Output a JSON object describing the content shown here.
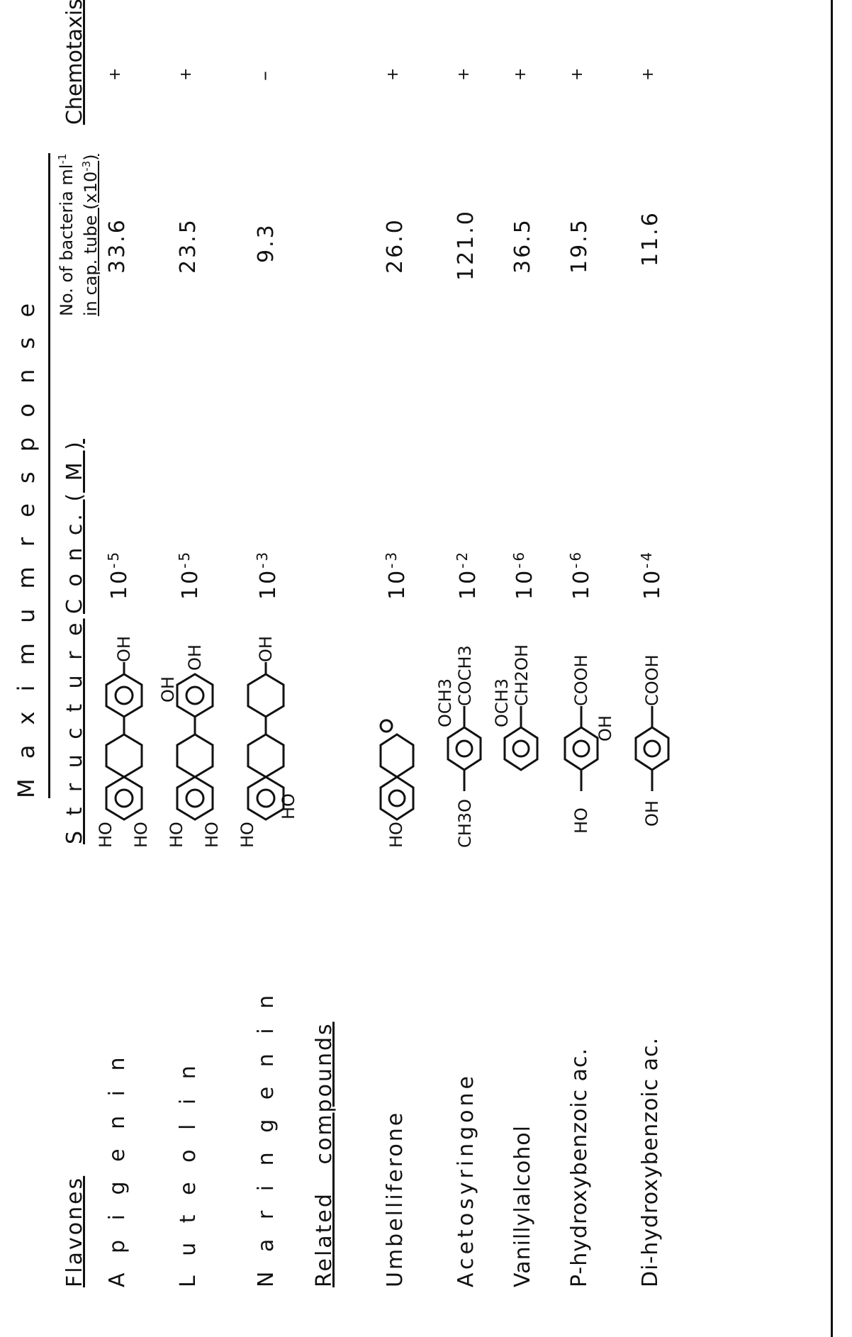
{
  "headers": {
    "maximum_response": "M a x i m u m   r e s p o n s e",
    "structure": "S t r u c t u r e",
    "conc": "C o n c. ( M )",
    "bacteria_line1": "No. of bacteria ml",
    "bacteria_line2": "in cap. tube (x10",
    "bacteria_exp": "-3",
    "chemotaxis": "Chemotaxis"
  },
  "sections": {
    "flavones": "Flavones",
    "related": "Related compounds"
  },
  "rows": [
    {
      "compound": "A p i g e n i n",
      "conc_base": "10",
      "conc_exp": "-5",
      "bacteria": "33.6",
      "chemotaxis": "+",
      "structure": {
        "left": [
          "HO",
          "HO"
        ],
        "right": [
          "OH"
        ]
      }
    },
    {
      "compound": "L u t e o l i n",
      "conc_base": "10",
      "conc_exp": "-5",
      "bacteria": "23.5",
      "chemotaxis": "+",
      "structure": {
        "left": [
          "HO",
          "HO"
        ],
        "right": [
          "OH",
          "OH"
        ]
      }
    },
    {
      "compound": "N a r i n g e n i n",
      "conc_base": "10",
      "conc_exp": "-3",
      "bacteria": "9.3",
      "chemotaxis": "–",
      "structure": {
        "left": [
          "HO",
          "HO"
        ],
        "right": [
          "OH"
        ]
      }
    },
    {
      "compound": "Umbelliferone",
      "conc_base": "10",
      "conc_exp": "-3",
      "bacteria": "26.0",
      "chemotaxis": "+",
      "structure": {
        "left": [
          "HO"
        ],
        "right": []
      }
    },
    {
      "compound": "Acetosyringone",
      "conc_base": "10",
      "conc_exp": "-2",
      "bacteria": "121.0",
      "chemotaxis": "+",
      "structure": {
        "left": [
          "CH3O"
        ],
        "right": [
          "COCH3",
          "OCH3"
        ]
      }
    },
    {
      "compound": "Vanillylalcohol",
      "conc_base": "10",
      "conc_exp": "-6",
      "bacteria": "36.5",
      "chemotaxis": "+",
      "structure": {
        "left": [],
        "right": [
          "CH2OH",
          "OCH3"
        ]
      }
    },
    {
      "compound": "P-hydroxybenzoic ac.",
      "conc_base": "10",
      "conc_exp": "-6",
      "bacteria": "19.5",
      "chemotaxis": "+",
      "structure": {
        "left": [
          "HO"
        ],
        "right": [
          "COOH",
          "OH"
        ]
      }
    },
    {
      "compound": "Di-hydroxybenzoic ac.",
      "conc_base": "10",
      "conc_exp": "-4",
      "bacteria": "11.6",
      "chemotaxis": "+",
      "structure": {
        "left": [
          "OH"
        ],
        "right": [
          "COOH"
        ]
      }
    }
  ]
}
